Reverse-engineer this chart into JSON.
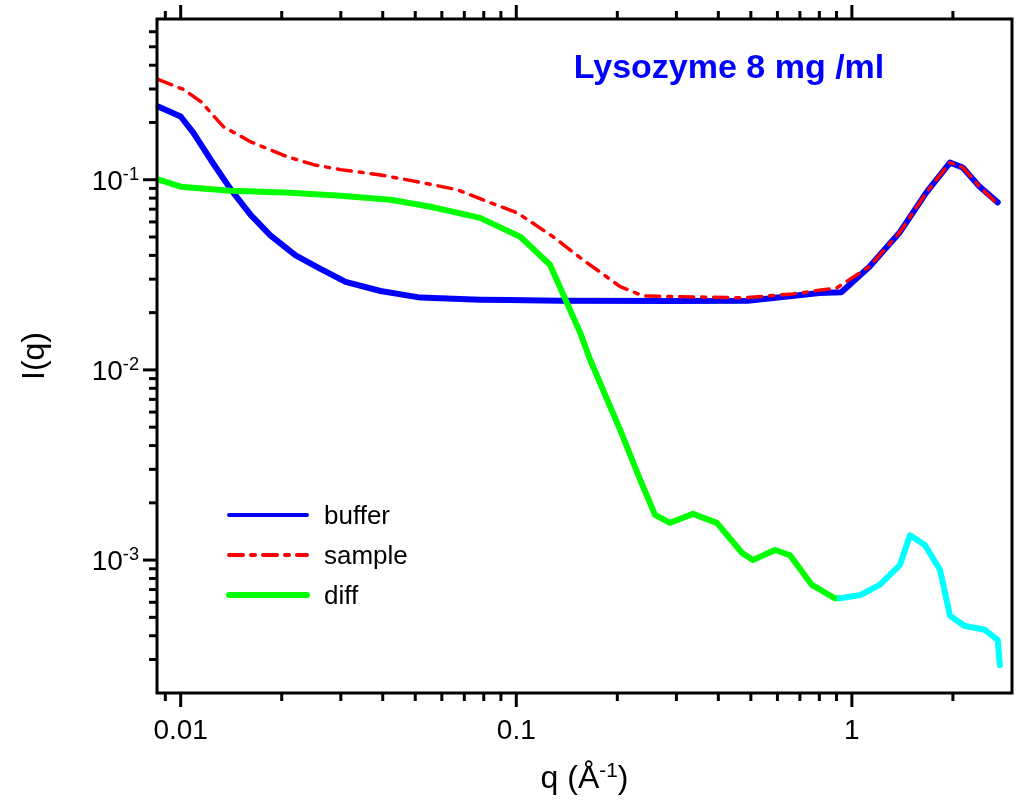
{
  "chart_data": {
    "type": "line",
    "xlabel": "q (Å$^{-1}$)",
    "ylabel": "I(q)",
    "annotations": [
      "Lysozyme 8 mg /ml"
    ],
    "log": "xy",
    "legend": "bottom left",
    "grid": false,
    "xlim": [
      0.0085,
      3
    ],
    "ylim": [
      0.0002,
      0.7
    ],
    "xticks": [
      {
        "value": 0.009,
        "label": null
      },
      0.01,
      {
        "value": 0.02,
        "label": null
      },
      {
        "value": 0.03,
        "label": null
      },
      {
        "value": 0.04,
        "label": null
      },
      {
        "value": 0.05,
        "label": null
      },
      {
        "value": 0.06,
        "label": null
      },
      {
        "value": 0.07,
        "label": null
      },
      {
        "value": 0.08,
        "label": null
      },
      {
        "value": 0.09,
        "label": null
      },
      0.1,
      {
        "value": 0.2,
        "label": null
      },
      {
        "value": 0.3,
        "label": null
      },
      {
        "value": 0.4,
        "label": null
      },
      {
        "value": 0.5,
        "label": null
      },
      {
        "value": 0.6,
        "label": null
      },
      {
        "value": 0.7,
        "label": null
      },
      {
        "value": 0.8,
        "label": null
      },
      {
        "value": 0.9,
        "label": null
      },
      {
        "value": 1,
        "label": "1"
      },
      {
        "value": 2,
        "label": null
      }
    ],
    "yticks": [
      {
        "value": 0.0003,
        "label": null
      },
      {
        "value": 0.0004,
        "label": null
      },
      {
        "value": 0.0005,
        "label": null
      },
      {
        "value": 0.0006,
        "label": null
      },
      {
        "value": 0.0007,
        "label": null
      },
      {
        "value": 0.0008,
        "label": null
      },
      {
        "value": 0.0009,
        "label": null
      },
      {
        "value": 0.001,
        "label": "10$^{-3}$"
      },
      {
        "value": 0.002,
        "label": null
      },
      {
        "value": 0.003,
        "label": null
      },
      {
        "value": 0.004,
        "label": null
      },
      {
        "value": 0.005,
        "label": null
      },
      {
        "value": 0.006,
        "label": null
      },
      {
        "value": 0.007,
        "label": null
      },
      {
        "value": 0.008,
        "label": null
      },
      {
        "value": 0.009,
        "label": null
      },
      {
        "value": 0.01,
        "label": "10$^{-2}$"
      },
      {
        "value": 0.02,
        "label": null
      },
      {
        "value": 0.03,
        "label": null
      },
      {
        "value": 0.04,
        "label": null
      },
      {
        "value": 0.05,
        "label": null
      },
      {
        "value": 0.06,
        "label": null
      },
      {
        "value": 0.07,
        "label": null
      },
      {
        "value": 0.08,
        "label": null
      },
      {
        "value": 0.09,
        "label": null
      },
      {
        "value": 0.1,
        "label": "10$^{-1}$"
      },
      {
        "value": 0.2,
        "label": null
      },
      {
        "value": 0.3,
        "label": null
      },
      {
        "value": 0.4,
        "label": null
      },
      {
        "value": 0.5,
        "label": null
      },
      {
        "value": 0.6,
        "label": null
      }
    ],
    "series": [
      {
        "name": "buffer",
        "color": "#0000ff",
        "line_style": "solid",
        "x": [
          0.0086,
          0.01,
          0.0109,
          0.0123,
          0.0141,
          0.0162,
          0.0185,
          0.022,
          0.0261,
          0.031,
          0.0394,
          0.0518,
          0.078,
          0.135,
          0.3,
          0.49,
          0.8,
          0.93,
          1.13,
          1.39,
          1.67,
          1.96,
          2.14,
          2.4,
          2.72
        ],
        "values": [
          0.242,
          0.215,
          0.177,
          0.127,
          0.089,
          0.065,
          0.051,
          0.04,
          0.034,
          0.029,
          0.026,
          0.024,
          0.0234,
          0.0231,
          0.023,
          0.0231,
          0.0254,
          0.0256,
          0.035,
          0.053,
          0.086,
          0.123,
          0.116,
          0.092,
          0.076
        ]
      },
      {
        "name": "sample",
        "color": "#ff0000",
        "line_style": "dashdot",
        "x": [
          0.0086,
          0.0102,
          0.0115,
          0.0134,
          0.0162,
          0.0208,
          0.0249,
          0.0299,
          0.0394,
          0.0507,
          0.0667,
          0.0837,
          0.1007,
          0.129,
          0.155,
          0.204,
          0.239,
          0.337,
          0.474,
          0.668,
          0.902,
          1.13,
          1.39,
          1.67,
          1.96,
          2.14,
          2.4,
          2.75
        ],
        "values": [
          0.336,
          0.298,
          0.257,
          0.19,
          0.158,
          0.132,
          0.12,
          0.113,
          0.106,
          0.0976,
          0.0886,
          0.0757,
          0.067,
          0.05,
          0.0389,
          0.0274,
          0.0245,
          0.0242,
          0.0239,
          0.0251,
          0.027,
          0.035,
          0.053,
          0.086,
          0.123,
          0.116,
          0.092,
          0.073
        ]
      },
      {
        "name": "diff",
        "color": "#00ff00",
        "line_style": "solid",
        "x": [
          0.0086,
          0.01,
          0.0141,
          0.0212,
          0.0299,
          0.0422,
          0.0555,
          0.078,
          0.103,
          0.126,
          0.155,
          0.166,
          0.204,
          0.234,
          0.259,
          0.287,
          0.336,
          0.396,
          0.471,
          0.507,
          0.59,
          0.654,
          0.76,
          0.889,
          0.92
        ],
        "values": [
          0.1,
          0.0919,
          0.0875,
          0.0855,
          0.0824,
          0.0785,
          0.0721,
          0.063,
          0.05,
          0.0357,
          0.0157,
          0.0113,
          0.00483,
          0.00264,
          0.00173,
          0.00157,
          0.00175,
          0.00157,
          0.00109,
          0.001,
          0.00113,
          0.00106,
          0.00074,
          0.00063,
          0.00063
        ]
      },
      {
        "color": "#00ffff",
        "line_style": "solid",
        "x": [
          0.92,
          1.06,
          1.21,
          1.39,
          1.49,
          1.65,
          1.83,
          1.96,
          2.17,
          2.49,
          2.72,
          2.76
        ],
        "values": [
          0.00063,
          0.000655,
          0.00074,
          0.00094,
          0.00135,
          0.0012,
          0.00089,
          0.00051,
          0.00045,
          0.00043,
          0.00038,
          0.00028
        ]
      }
    ]
  }
}
